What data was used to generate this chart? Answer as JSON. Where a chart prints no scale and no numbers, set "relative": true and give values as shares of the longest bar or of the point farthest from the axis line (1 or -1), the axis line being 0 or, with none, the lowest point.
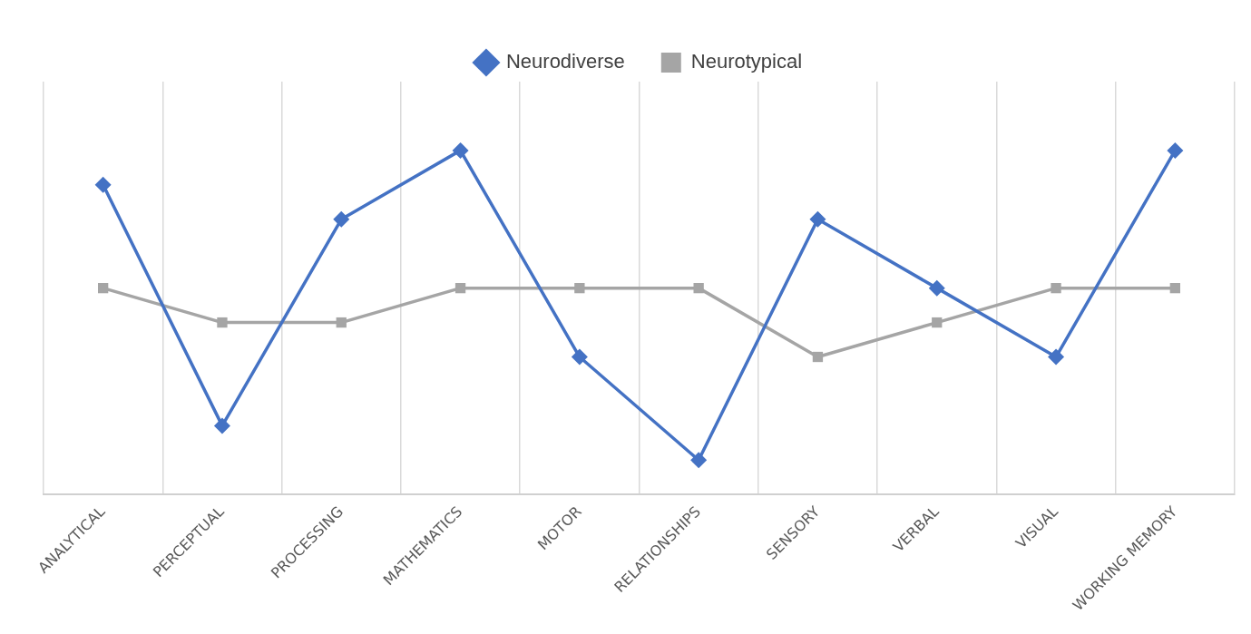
{
  "chart_data": {
    "type": "line",
    "relative": true,
    "categories": [
      "ANALYTICAL",
      "PERCEPTUAL",
      "PROCESSING",
      "MATHEMATICS",
      "MOTOR",
      "RELATIONSHIPS",
      "SENSORY",
      "VERBAL",
      "VISUAL",
      "WORKING MEMORY"
    ],
    "series": [
      {
        "name": "Neurodiverse",
        "color": "#4472c4",
        "marker": "diamond",
        "values": [
          0.9,
          0.2,
          0.8,
          1,
          0.4,
          0.1,
          0.8,
          0.6,
          0.4,
          1
        ]
      },
      {
        "name": "Neurotypical",
        "color": "#a5a5a5",
        "marker": "square",
        "values": [
          0.6,
          0.5,
          0.5,
          0.6,
          0.6,
          0.6,
          0.4,
          0.5,
          0.6,
          0.6
        ]
      }
    ],
    "grid": "x",
    "legend": "top",
    "line_style": "solid"
  }
}
